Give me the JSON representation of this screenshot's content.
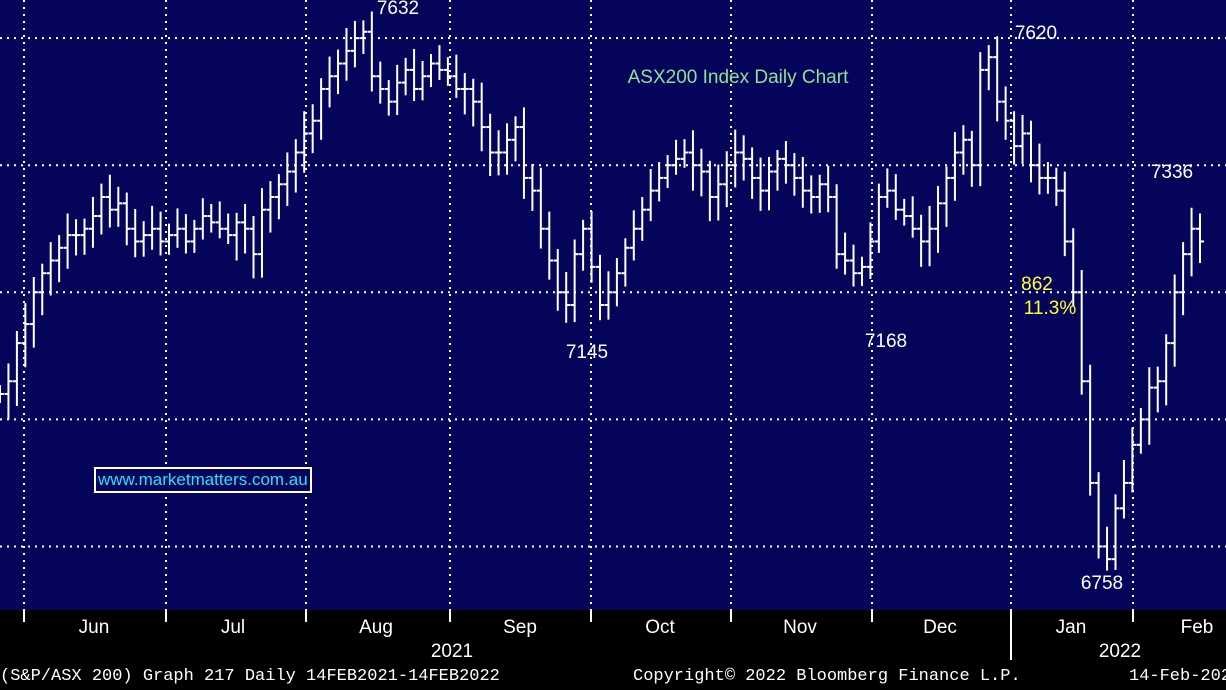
{
  "chart_data": {
    "type": "ohlc",
    "title": "ASX200 Index Daily Chart",
    "ylim": [
      6700,
      7660
    ],
    "grid": true,
    "colors": {
      "background": "#04045a",
      "bars": "#ffffff",
      "grid": "#ffffff",
      "title": "#8fe28f",
      "highlight": "#ffff33",
      "watermark": "#1ee6ff"
    },
    "x_month_labels": [
      "Jun",
      "Jul",
      "Aug",
      "Sep",
      "Oct",
      "Nov",
      "Dec",
      "Jan",
      "Feb"
    ],
    "x_year_labels": [
      "2021",
      "2022"
    ],
    "annotations": [
      {
        "text": "7632",
        "kind": "high"
      },
      {
        "text": "7145",
        "kind": "low"
      },
      {
        "text": "7168",
        "kind": "low"
      },
      {
        "text": "7620",
        "kind": "high"
      },
      {
        "text": "862",
        "kind": "highlight"
      },
      {
        "text": "11.3%",
        "kind": "highlight"
      },
      {
        "text": "6758",
        "kind": "low"
      },
      {
        "text": "7336",
        "kind": "high"
      }
    ],
    "series": [
      {
        "closes": [
          7040,
          7060,
          7120,
          7150,
          7200,
          7230,
          7250,
          7270,
          7290,
          7290,
          7300,
          7320,
          7350,
          7330,
          7340,
          7300,
          7280,
          7290,
          7300,
          7280,
          7290,
          7300,
          7280,
          7300,
          7320,
          7310,
          7300,
          7290,
          7310,
          7300,
          7260,
          7330,
          7350,
          7370,
          7390,
          7420,
          7450,
          7470,
          7520,
          7540,
          7560,
          7580,
          7600,
          7610,
          7540,
          7520,
          7500,
          7530,
          7550,
          7520,
          7540,
          7560,
          7550,
          7540,
          7520,
          7520,
          7500,
          7460,
          7420,
          7420,
          7440,
          7460,
          7380,
          7360,
          7300,
          7250,
          7200,
          7180,
          7260,
          7300,
          7240,
          7180,
          7200,
          7230,
          7270,
          7300,
          7330,
          7360,
          7380,
          7400,
          7410,
          7420,
          7400,
          7390,
          7350,
          7370,
          7400,
          7420,
          7410,
          7380,
          7360,
          7390,
          7410,
          7400,
          7380,
          7360,
          7350,
          7370,
          7350,
          7260,
          7250,
          7230,
          7240,
          7280,
          7350,
          7360,
          7330,
          7320,
          7300,
          7280,
          7300,
          7340,
          7380,
          7420,
          7440,
          7400,
          7550,
          7570,
          7500,
          7470,
          7430,
          7450,
          7400,
          7380,
          7380,
          7360,
          7280,
          7200,
          7060,
          6900,
          6800,
          6780,
          6860,
          6900,
          6960,
          7000,
          7050,
          7060,
          7120,
          7200,
          7260,
          7300,
          7280
        ]
      }
    ]
  },
  "footer": {
    "left": "(S&P/ASX 200) Graph 217  Daily 14FEB2021-14FEB2022",
    "right": "Copyright© 2022 Bloomberg Finance L.P.",
    "date": "14-Feb-202"
  },
  "watermark": "www.marketmatters.com.au"
}
